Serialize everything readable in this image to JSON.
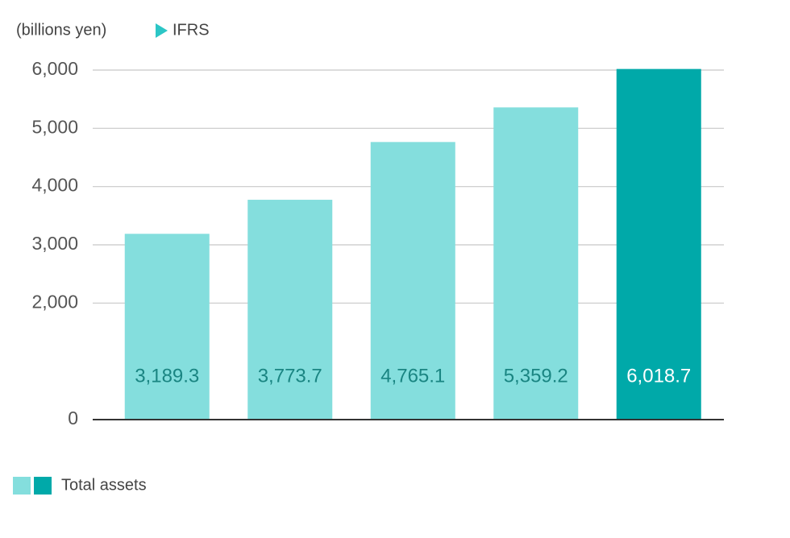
{
  "chart_data": {
    "type": "bar",
    "unit_label": "(billions yen)",
    "standard_label": "IFRS",
    "values": [
      3189.3,
      3773.7,
      4765.1,
      5359.2,
      6018.7
    ],
    "value_labels": [
      "3,189.3",
      "3,773.7",
      "4,765.1",
      "5,359.2",
      "6,018.7"
    ],
    "colors": [
      "#84dedd",
      "#84dedd",
      "#84dedd",
      "#84dedd",
      "#00a9a9"
    ],
    "value_label_colors": [
      "#1a8582",
      "#1a8582",
      "#1a8582",
      "#1a8582",
      "#ffffff"
    ],
    "ylim": [
      0,
      6000
    ],
    "yticks": [
      0,
      {
        "value": 2000,
        "label": "2,000"
      },
      {
        "value": 3000,
        "label": "3,000"
      },
      {
        "value": 4000,
        "label": "4,000"
      },
      {
        "value": 5000,
        "label": "5,000"
      },
      {
        "value": 6000,
        "label": "6,000"
      }
    ],
    "grid": true,
    "legend": {
      "label": "Total assets",
      "colors": [
        "#84dedd",
        "#00a9a9"
      ]
    }
  }
}
